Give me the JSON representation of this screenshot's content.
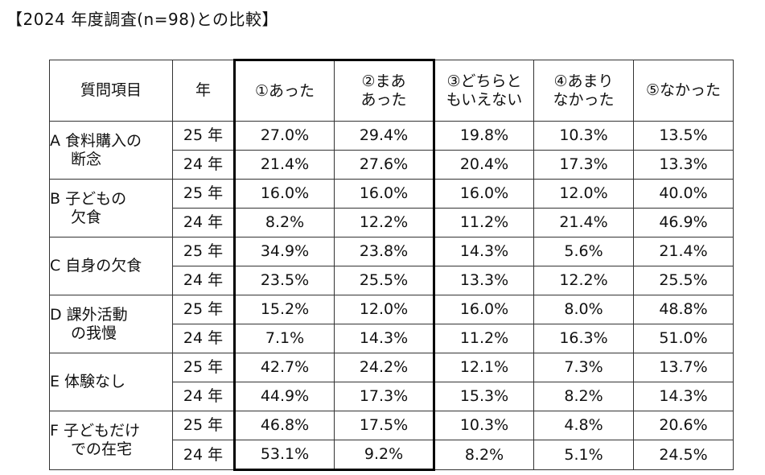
{
  "title": "【2024 年度調査(n=98)との比較】",
  "header": {
    "item": "質問項目",
    "year": "年",
    "c1": [
      "①あった"
    ],
    "c2": [
      "②まあ",
      "あった"
    ],
    "c3": [
      "③どちらと",
      "もいえない"
    ],
    "c4": [
      "④あまり",
      "なかった"
    ],
    "c5": [
      "⑤なかった"
    ]
  },
  "groups": [
    {
      "label": [
        "A 食料購入の",
        "断念"
      ],
      "rows": [
        {
          "year": "25 年",
          "values": [
            "27.0%",
            "29.4%",
            "19.8%",
            "10.3%",
            "13.5%"
          ]
        },
        {
          "year": "24 年",
          "values": [
            "21.4%",
            "27.6%",
            "20.4%",
            "17.3%",
            "13.3%"
          ]
        }
      ]
    },
    {
      "label": [
        "B 子どもの",
        "欠食"
      ],
      "rows": [
        {
          "year": "25 年",
          "values": [
            "16.0%",
            "16.0%",
            "16.0%",
            "12.0%",
            "40.0%"
          ]
        },
        {
          "year": "24 年",
          "values": [
            "8.2%",
            "12.2%",
            "11.2%",
            "21.4%",
            "46.9%"
          ]
        }
      ]
    },
    {
      "label": [
        "C 自身の欠食"
      ],
      "rows": [
        {
          "year": "25 年",
          "values": [
            "34.9%",
            "23.8%",
            "14.3%",
            "5.6%",
            "21.4%"
          ]
        },
        {
          "year": "24 年",
          "values": [
            "23.5%",
            "25.5%",
            "13.3%",
            "12.2%",
            "25.5%"
          ]
        }
      ]
    },
    {
      "label": [
        "D 課外活動",
        "の我慢"
      ],
      "rows": [
        {
          "year": "25 年",
          "values": [
            "15.2%",
            "12.0%",
            "16.0%",
            "8.0%",
            "48.8%"
          ]
        },
        {
          "year": "24 年",
          "values": [
            "7.1%",
            "14.3%",
            "11.2%",
            "16.3%",
            "51.0%"
          ]
        }
      ]
    },
    {
      "label": [
        "E 体験なし"
      ],
      "rows": [
        {
          "year": "25 年",
          "values": [
            "42.7%",
            "24.2%",
            "12.1%",
            "7.3%",
            "13.7%"
          ]
        },
        {
          "year": "24 年",
          "values": [
            "44.9%",
            "17.3%",
            "15.3%",
            "8.2%",
            "14.3%"
          ]
        }
      ]
    },
    {
      "label": [
        "F 子どもだけ",
        "での在宅"
      ],
      "rows": [
        {
          "year": "25 年",
          "values": [
            "46.8%",
            "17.5%",
            "10.3%",
            "4.8%",
            "20.6%"
          ]
        },
        {
          "year": "24 年",
          "values": [
            "53.1%",
            "9.2%",
            "8.2%",
            "5.1%",
            "24.5%"
          ]
        }
      ]
    }
  ]
}
